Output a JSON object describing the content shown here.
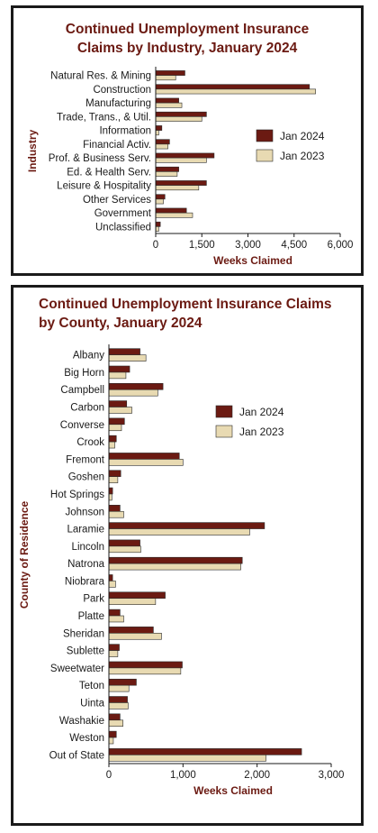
{
  "colors": {
    "jan2024": "#6b1a12",
    "jan2023": "#e8dab2",
    "title": "#6b1a12",
    "border": "#1a1a1a"
  },
  "industry_panel": {
    "title_line1": "Continued Unemployment Insurance",
    "title_line2": "Claims by Industry, January 2024"
  },
  "county_panel": {
    "title_line1": "Continued Unemployment Insurance Claims",
    "title_line2": "by County, January 2024"
  },
  "chart_data": [
    {
      "type": "bar",
      "orientation": "horizontal",
      "title": "Continued Unemployment Insurance Claims by Industry, January 2024",
      "xlabel": "Weeks Claimed",
      "ylabel": "Industry",
      "xlim": [
        0,
        6000
      ],
      "xticks": [
        "0",
        "1,500",
        "3,000",
        "4,500",
        "6,000"
      ],
      "legend": "right",
      "categories": [
        "Natural Res. & Mining",
        "Construction",
        "Manufacturing",
        "Trade, Trans., & Util.",
        "Information",
        "Financial Activ.",
        "Prof. & Business Serv.",
        "Ed. & Health Serv.",
        "Leisure & Hospitality",
        "Other Services",
        "Government",
        "Unclassified"
      ],
      "series": [
        {
          "name": "Jan 2024",
          "values": [
            950,
            5000,
            750,
            1650,
            200,
            450,
            1900,
            750,
            1650,
            300,
            1000,
            150
          ]
        },
        {
          "name": "Jan 2023",
          "values": [
            650,
            5200,
            850,
            1500,
            100,
            400,
            1650,
            700,
            1400,
            250,
            1200,
            100
          ]
        }
      ]
    },
    {
      "type": "bar",
      "orientation": "horizontal",
      "title": "Continued Unemployment Insurance Claims by County, January 2024",
      "xlabel": "Weeks Claimed",
      "ylabel": "County of Residence",
      "xlim": [
        0,
        3000
      ],
      "xticks": [
        "0",
        "1,000",
        "2,000",
        "3,000"
      ],
      "legend": "right",
      "categories": [
        "Albany",
        "Big Horn",
        "Campbell",
        "Carbon",
        "Converse",
        "Crook",
        "Fremont",
        "Goshen",
        "Hot Springs",
        "Johnson",
        "Laramie",
        "Lincoln",
        "Natrona",
        "Niobrara",
        "Park",
        "Platte",
        "Sheridan",
        "Sublette",
        "Sweetwater",
        "Teton",
        "Uinta",
        "Washakie",
        "Weston",
        "Out of State"
      ],
      "series": [
        {
          "name": "Jan 2024",
          "values": [
            420,
            280,
            730,
            240,
            210,
            100,
            950,
            160,
            50,
            150,
            2100,
            420,
            1800,
            50,
            760,
            150,
            600,
            140,
            990,
            370,
            250,
            150,
            100,
            2600
          ]
        },
        {
          "name": "Jan 2023",
          "values": [
            500,
            230,
            660,
            310,
            170,
            80,
            1000,
            120,
            40,
            200,
            1900,
            430,
            1780,
            90,
            630,
            200,
            710,
            120,
            970,
            270,
            260,
            190,
            60,
            2120
          ]
        }
      ]
    }
  ]
}
